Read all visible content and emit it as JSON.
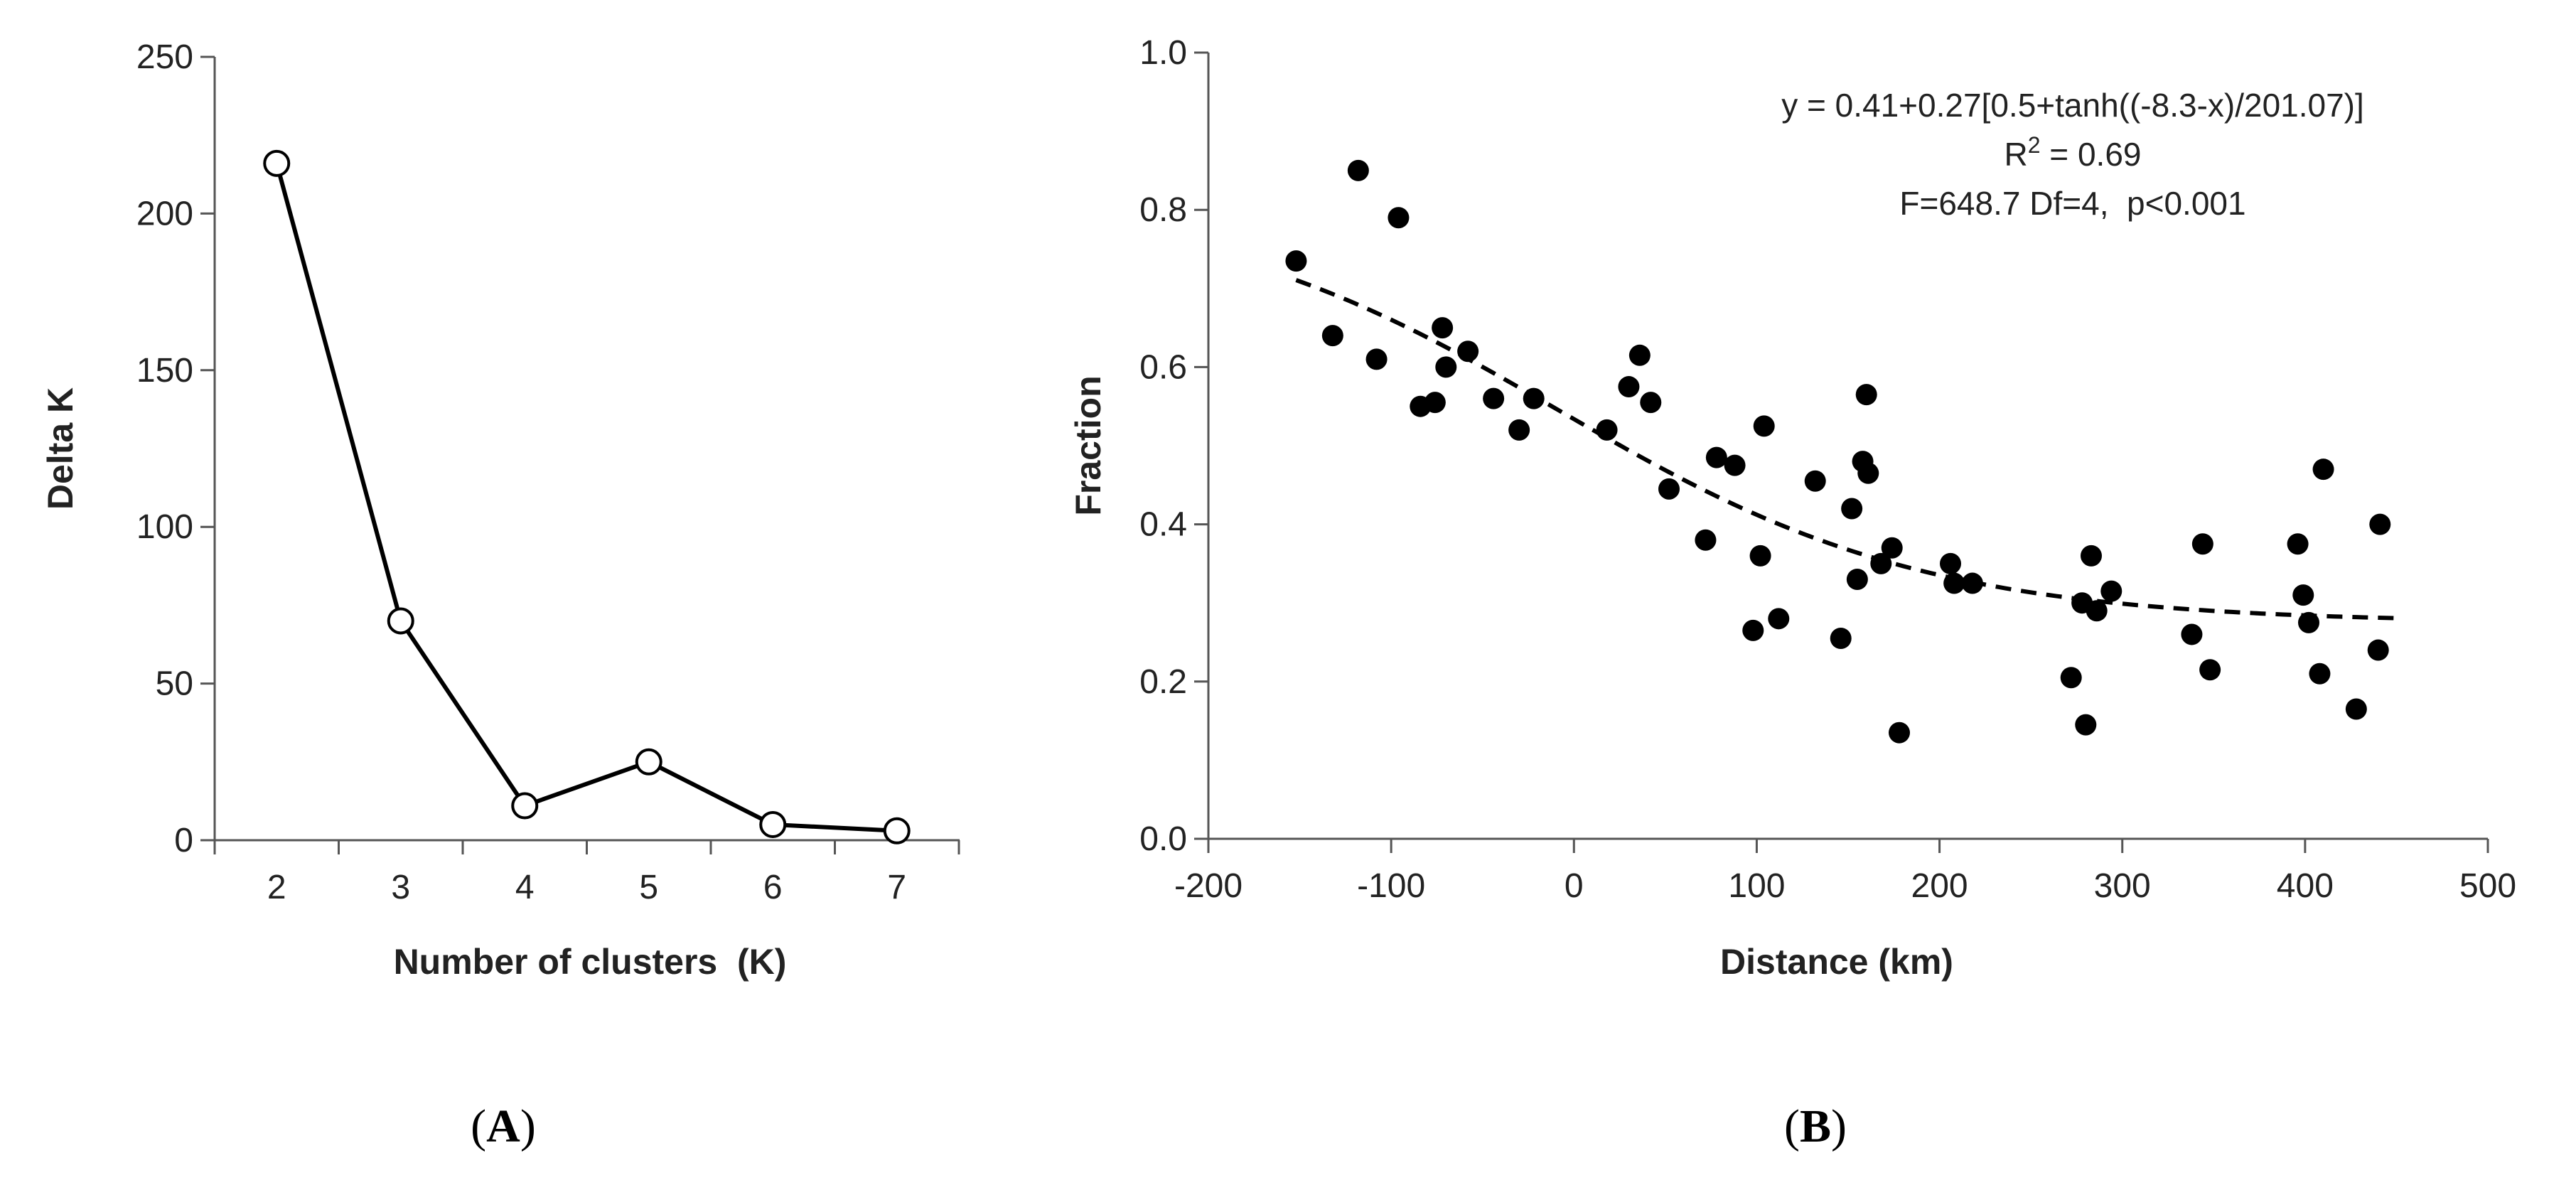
{
  "chart_data": [
    {
      "panel": "A",
      "type": "line",
      "categories": [
        "2",
        "3",
        "4",
        "5",
        "6",
        "7"
      ],
      "x": [
        2,
        3,
        4,
        5,
        6,
        7
      ],
      "values": [
        216,
        70,
        11,
        25,
        5,
        3
      ],
      "xlabel": "Number of clusters  (K)",
      "ylabel": "Delta K",
      "ylim": [
        0,
        250
      ],
      "yticks": [
        0,
        50,
        100,
        150,
        200,
        250
      ],
      "ytick_labels": [
        "0",
        "50",
        "100",
        "150",
        "200",
        "250"
      ],
      "marker": "open-circle"
    },
    {
      "panel": "B",
      "type": "scatter",
      "xlabel": "Distance (km)",
      "ylabel": "Fraction",
      "xlim": [
        -200,
        500
      ],
      "ylim": [
        0.0,
        1.0
      ],
      "xticks": [
        -200,
        -100,
        0,
        100,
        200,
        300,
        400,
        500
      ],
      "xtick_labels": [
        "-200",
        "-100",
        "0",
        "100",
        "200",
        "300",
        "400",
        "500"
      ],
      "yticks": [
        0,
        0.2,
        0.4,
        0.6,
        0.8,
        1.0
      ],
      "ytick_labels": [
        "0.0",
        "0.2",
        "0.4",
        "0.6",
        "0.8",
        "1.0"
      ],
      "points": [
        [
          -152,
          0.735
        ],
        [
          -132,
          0.64
        ],
        [
          -118,
          0.85
        ],
        [
          -108,
          0.61
        ],
        [
          -96,
          0.79
        ],
        [
          -84,
          0.55
        ],
        [
          -76,
          0.555
        ],
        [
          -72,
          0.65
        ],
        [
          -70,
          0.6
        ],
        [
          -58,
          0.62
        ],
        [
          -44,
          0.56
        ],
        [
          -30,
          0.52
        ],
        [
          -22,
          0.56
        ],
        [
          18,
          0.52
        ],
        [
          30,
          0.575
        ],
        [
          36,
          0.615
        ],
        [
          42,
          0.555
        ],
        [
          52,
          0.445
        ],
        [
          72,
          0.38
        ],
        [
          78,
          0.485
        ],
        [
          88,
          0.475
        ],
        [
          98,
          0.265
        ],
        [
          102,
          0.36
        ],
        [
          104,
          0.525
        ],
        [
          112,
          0.28
        ],
        [
          132,
          0.455
        ],
        [
          146,
          0.255
        ],
        [
          152,
          0.42
        ],
        [
          155,
          0.33
        ],
        [
          158,
          0.48
        ],
        [
          160,
          0.565
        ],
        [
          161,
          0.465
        ],
        [
          168,
          0.35
        ],
        [
          174,
          0.37
        ],
        [
          178,
          0.135
        ],
        [
          206,
          0.35
        ],
        [
          208,
          0.325
        ],
        [
          218,
          0.325
        ],
        [
          272,
          0.205
        ],
        [
          278,
          0.3
        ],
        [
          280,
          0.145
        ],
        [
          283,
          0.36
        ],
        [
          286,
          0.29
        ],
        [
          294,
          0.315
        ],
        [
          338,
          0.26
        ],
        [
          344,
          0.375
        ],
        [
          348,
          0.215
        ],
        [
          396,
          0.375
        ],
        [
          399,
          0.31
        ],
        [
          402,
          0.275
        ],
        [
          408,
          0.21
        ],
        [
          410,
          0.47
        ],
        [
          428,
          0.165
        ],
        [
          440,
          0.24
        ],
        [
          441,
          0.4
        ]
      ],
      "fit": {
        "a": 0.41,
        "b": 0.27,
        "c": 0.5,
        "x0": -8.3,
        "scale": 201.07,
        "x_range": [
          -152,
          452
        ],
        "style": "dashed"
      },
      "annotation": {
        "line1": "y = 0.41+0.27[0.5+tanh((-8.3-x)/201.07)]",
        "line2_base": "R",
        "line2_sup": "2",
        "line2_rest": " = 0.69",
        "line3": "F=648.7 Df=4,  p<0.001"
      }
    }
  ],
  "labels": {
    "a_open": "(",
    "a_letter": "A",
    "a_close": ")",
    "b_open": "(",
    "b_letter": "B",
    "b_close": ")"
  }
}
